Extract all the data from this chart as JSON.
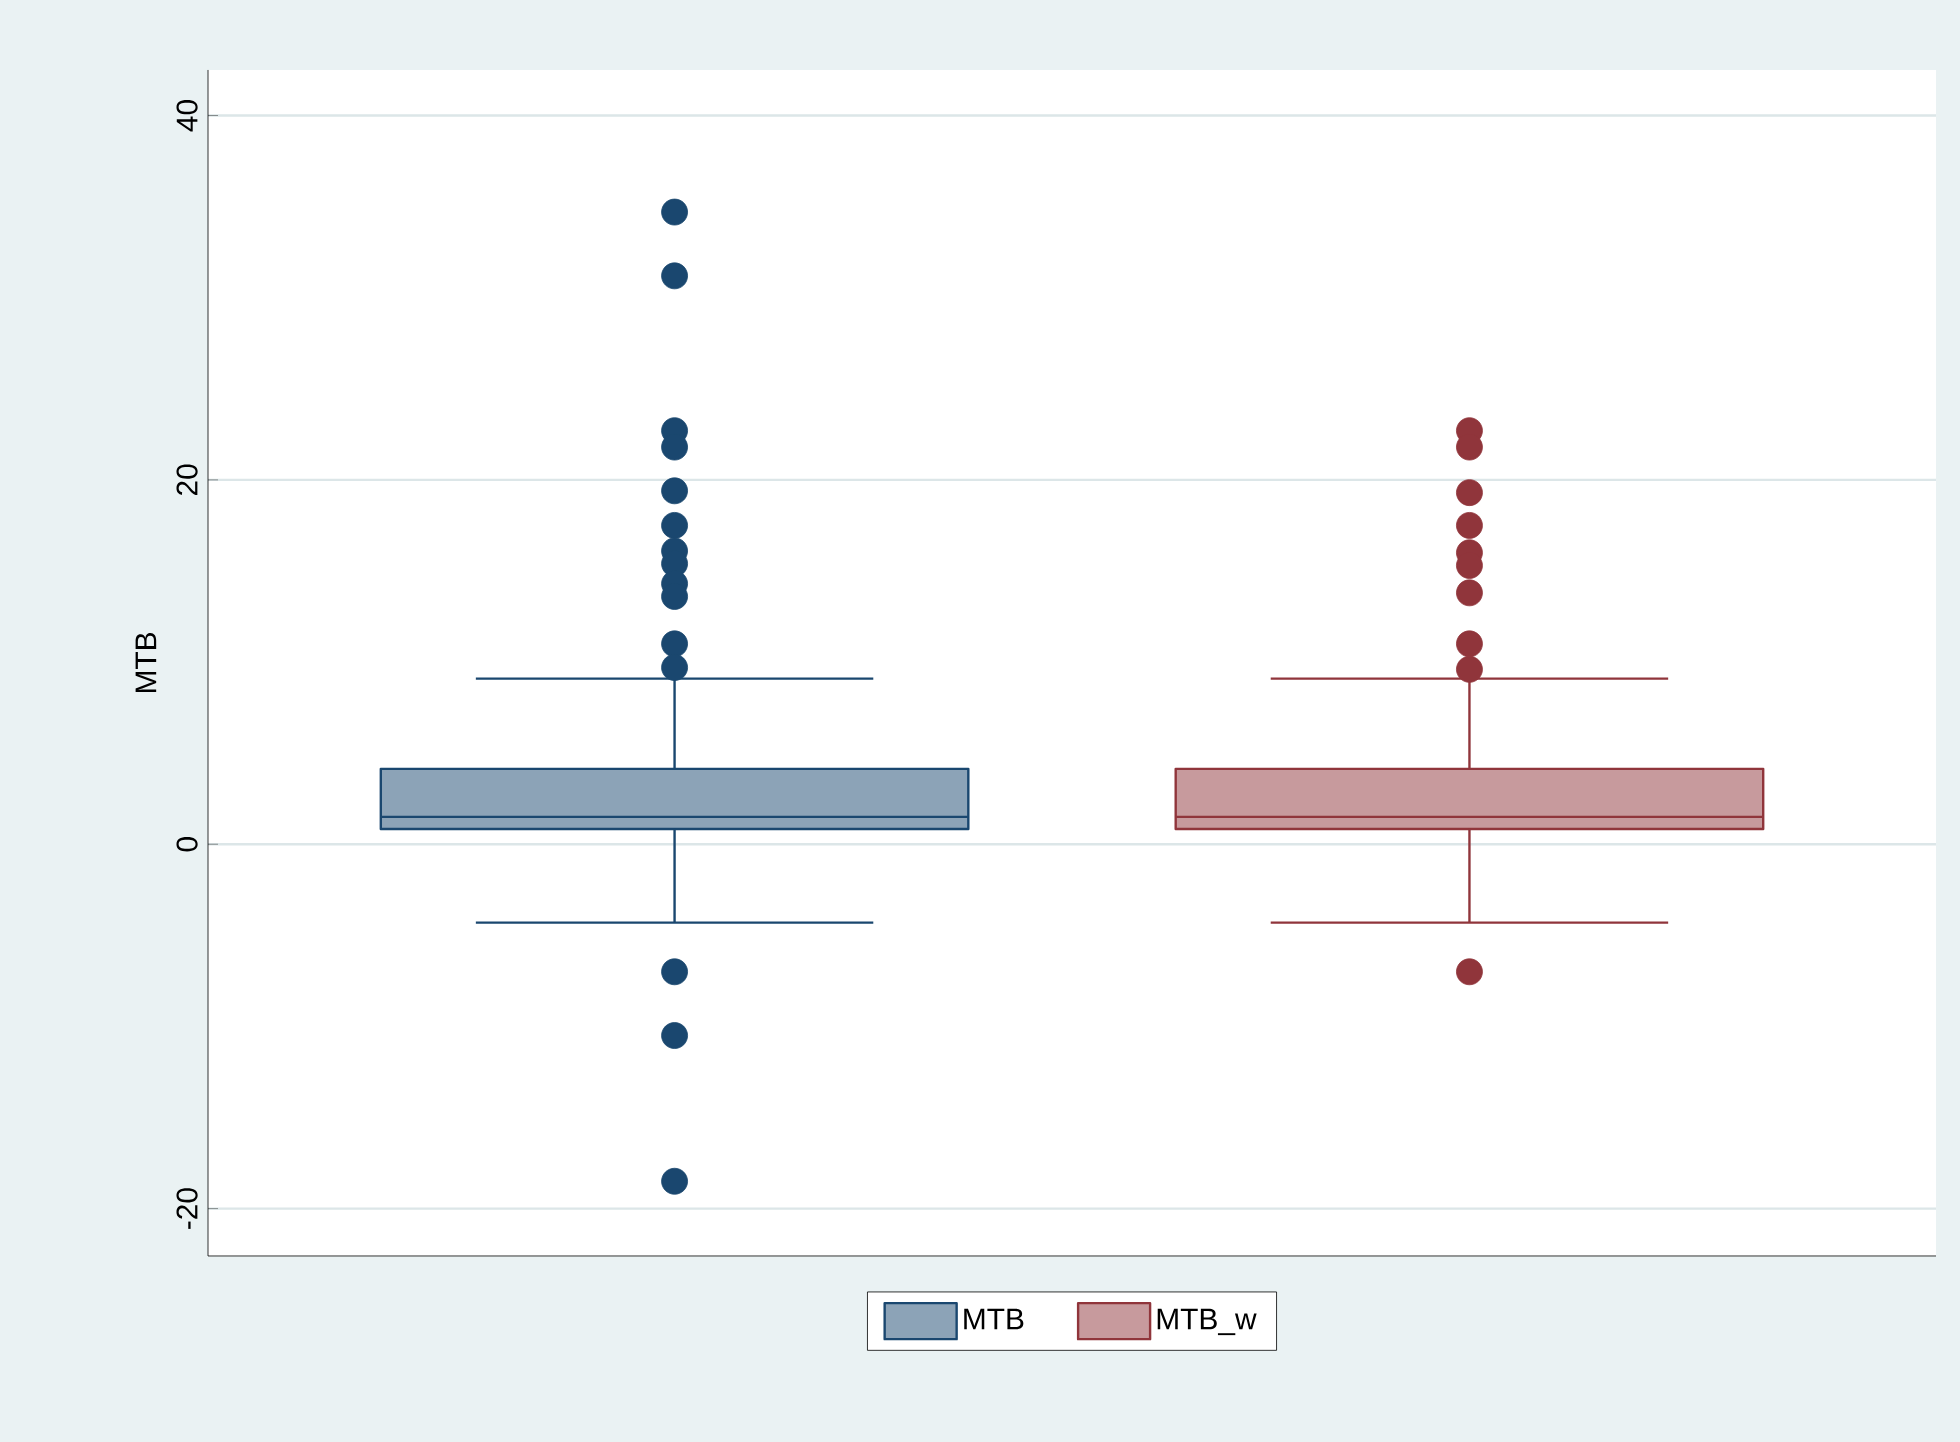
{
  "chart_data": {
    "type": "box",
    "ylabel": "MTB",
    "categories": [
      null
    ],
    "ylim": [
      -22.6,
      42.5
    ],
    "yticks": [
      -20,
      0,
      20,
      40
    ],
    "grid": "y",
    "legend": "bottom",
    "series": [
      {
        "name": "MTB",
        "color": "#1a476f",
        "boxes": [
          {
            "low": -4.3,
            "q1": 0.84,
            "median": 1.5,
            "q3": 4.14,
            "high": 9.09,
            "outliers": [
              34.7,
              31.2,
              22.7,
              21.8,
              19.4,
              17.5,
              16.1,
              15.4,
              14.3,
              13.6,
              11.0,
              9.7,
              -7.0,
              -10.5,
              -18.5
            ]
          }
        ]
      },
      {
        "name": "MTB_w",
        "color": "#90353b",
        "boxes": [
          {
            "low": -4.3,
            "q1": 0.84,
            "median": 1.5,
            "q3": 4.14,
            "high": 9.09,
            "outliers": [
              22.7,
              21.8,
              19.3,
              17.5,
              16.0,
              15.3,
              13.8,
              11.0,
              9.6,
              -7.0
            ]
          }
        ]
      }
    ]
  }
}
